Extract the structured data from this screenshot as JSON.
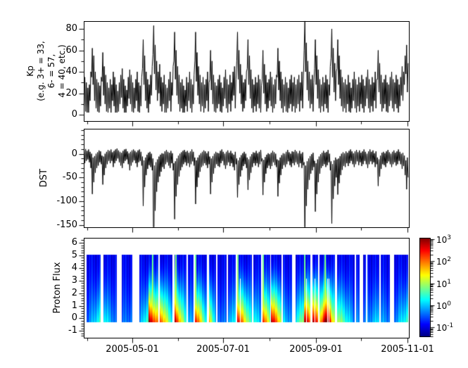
{
  "figure": {
    "background": "#ffffff",
    "line_color": "#000000",
    "axis_color": "#000000"
  },
  "xaxis": {
    "tick_labels": [
      "2005-05-01",
      "2005-07-01",
      "2005-09-01",
      "2005-11-01"
    ],
    "major_tick_days": [
      32,
      93,
      155,
      216
    ],
    "minor_tick_days": [
      2,
      63,
      124,
      185
    ],
    "span_days": 217
  },
  "colorbar": {
    "colormap": "jet",
    "scale": "log",
    "tick_exponents": [
      3,
      2,
      1,
      0,
      -1
    ],
    "base": "10",
    "log_range": [
      -1.41,
      3.06
    ]
  },
  "chart_data": [
    {
      "type": "line",
      "id": "kp",
      "ylabel_lines": [
        "Kp",
        "(e.g. 3+ = 33,",
        "6- = 57,",
        "4 = 40, etc.)"
      ],
      "ylim": [
        -6,
        87
      ],
      "yticks_major": [
        0,
        20,
        40,
        60,
        80
      ],
      "yticks_minor": [
        10,
        30,
        50,
        70
      ],
      "samples_per_day": 2,
      "series": [
        {
          "name": "kp_daily_low",
          "values": [
            8,
            3,
            2,
            2,
            13,
            35,
            28,
            13,
            6,
            3,
            2,
            8,
            31,
            18,
            10,
            3,
            2,
            6,
            2,
            13,
            8,
            2,
            2,
            3,
            10,
            16,
            6,
            2,
            2,
            8,
            15,
            10,
            3,
            2,
            6,
            13,
            3,
            2,
            8,
            43,
            28,
            13,
            6,
            2,
            10,
            18,
            56,
            38,
            23,
            13,
            20,
            8,
            3,
            10,
            2,
            2,
            6,
            13,
            3,
            18,
            50,
            33,
            18,
            10,
            3,
            6,
            2,
            2,
            8,
            3,
            13,
            6,
            2,
            10,
            50,
            31,
            18,
            10,
            3,
            8,
            2,
            6,
            13,
            3,
            33,
            23,
            10,
            3,
            2,
            6,
            10,
            3,
            2,
            8,
            15,
            6,
            2,
            10,
            3,
            13,
            18,
            6,
            50,
            33,
            20,
            10,
            3,
            6,
            13,
            43,
            28,
            15,
            6,
            2,
            8,
            3,
            10,
            6,
            2,
            33,
            20,
            10,
            3,
            6,
            13,
            8,
            2,
            6,
            10,
            35,
            23,
            13,
            6,
            2,
            8,
            3,
            2,
            6,
            10,
            3,
            8,
            2,
            6,
            10,
            3,
            13,
            6,
            60,
            40,
            23,
            13,
            6,
            10,
            3,
            43,
            28,
            15,
            6,
            2,
            8,
            3,
            10,
            6,
            2,
            18,
            53,
            35,
            21,
            13,
            43,
            28,
            15,
            8,
            3,
            6,
            2,
            10,
            3,
            2,
            6,
            13,
            6,
            2,
            8,
            3,
            10,
            6,
            2,
            8,
            15,
            6,
            2,
            8,
            3,
            13,
            6,
            33,
            21,
            10,
            3,
            6,
            10,
            3,
            2,
            8,
            13,
            6,
            3,
            10,
            6,
            2,
            8,
            18,
            13,
            28,
            38,
            21
          ]
        },
        {
          "name": "kp_daily_high",
          "values": [
            35,
            30,
            25,
            28,
            40,
            62,
            55,
            40,
            33,
            30,
            27,
            35,
            58,
            45,
            37,
            30,
            25,
            33,
            28,
            40,
            35,
            28,
            22,
            30,
            37,
            43,
            33,
            27,
            23,
            35,
            42,
            37,
            30,
            25,
            33,
            40,
            30,
            27,
            35,
            70,
            55,
            40,
            33,
            28,
            37,
            45,
            83,
            65,
            50,
            40,
            47,
            35,
            30,
            37,
            28,
            25,
            33,
            40,
            30,
            45,
            77,
            60,
            45,
            37,
            30,
            33,
            27,
            23,
            35,
            30,
            40,
            33,
            28,
            37,
            77,
            58,
            45,
            37,
            30,
            35,
            28,
            33,
            40,
            30,
            60,
            50,
            37,
            30,
            27,
            33,
            37,
            30,
            25,
            35,
            42,
            33,
            28,
            37,
            30,
            40,
            45,
            33,
            77,
            60,
            47,
            37,
            30,
            33,
            40,
            70,
            55,
            42,
            33,
            28,
            35,
            30,
            37,
            33,
            27,
            60,
            47,
            37,
            30,
            33,
            40,
            35,
            28,
            33,
            37,
            62,
            50,
            40,
            33,
            28,
            35,
            30,
            25,
            33,
            37,
            30,
            35,
            28,
            33,
            37,
            30,
            40,
            33,
            87,
            67,
            50,
            40,
            33,
            37,
            30,
            70,
            55,
            42,
            33,
            28,
            35,
            30,
            37,
            33,
            28,
            45,
            80,
            62,
            48,
            40,
            70,
            55,
            42,
            35,
            30,
            33,
            28,
            37,
            30,
            25,
            33,
            40,
            33,
            28,
            35,
            30,
            37,
            33,
            27,
            35,
            42,
            33,
            28,
            35,
            30,
            40,
            33,
            60,
            48,
            37,
            30,
            33,
            37,
            30,
            28,
            35,
            40,
            33,
            30,
            37,
            33,
            28,
            35,
            45,
            40,
            55,
            65,
            48
          ]
        }
      ]
    },
    {
      "type": "line",
      "id": "dst",
      "ylabel": "DST",
      "ylim": [
        -157,
        53
      ],
      "yticks_major": [
        0,
        -50,
        -100,
        -150
      ],
      "yticks_minor_step": 10,
      "samples_per_day": 2,
      "series": [
        {
          "name": "dst_daily_high",
          "values": [
            8,
            10,
            6,
            9,
            4,
            0,
            -8,
            -5,
            0,
            3,
            7,
            5,
            -4,
            -6,
            0,
            4,
            8,
            6,
            9,
            3,
            6,
            9,
            11,
            7,
            4,
            2,
            6,
            9,
            10,
            5,
            1,
            4,
            7,
            9,
            6,
            3,
            7,
            9,
            4,
            -6,
            -14,
            -8,
            -2,
            2,
            4,
            0,
            -10,
            -25,
            -18,
            -12,
            -6,
            -2,
            1,
            0,
            5,
            8,
            4,
            2,
            6,
            1,
            -20,
            -16,
            -10,
            -4,
            0,
            3,
            6,
            8,
            4,
            6,
            2,
            5,
            9,
            4,
            -8,
            -14,
            -8,
            -3,
            1,
            4,
            7,
            5,
            1,
            5,
            -6,
            -10,
            -5,
            0,
            4,
            2,
            1,
            6,
            9,
            4,
            0,
            4,
            7,
            2,
            6,
            1,
            -2,
            4,
            -10,
            -14,
            -8,
            -3,
            1,
            4,
            0,
            -8,
            -12,
            -6,
            -1,
            3,
            2,
            6,
            1,
            4,
            8,
            -10,
            -13,
            -7,
            -2,
            1,
            -1,
            2,
            6,
            3,
            0,
            -12,
            -14,
            -8,
            -3,
            1,
            0,
            4,
            8,
            3,
            0,
            5,
            4,
            8,
            5,
            1,
            6,
            0,
            3,
            -18,
            -25,
            -16,
            -10,
            -5,
            -1,
            2,
            -15,
            -20,
            -12,
            -6,
            -1,
            2,
            6,
            2,
            4,
            8,
            0,
            -16,
            -22,
            -14,
            -8,
            -12,
            -10,
            -5,
            0,
            3,
            1,
            5,
            2,
            6,
            9,
            5,
            1,
            5,
            8,
            3,
            7,
            2,
            5,
            9,
            4,
            0,
            5,
            9,
            4,
            7,
            1,
            5,
            -8,
            -12,
            -4,
            2,
            4,
            1,
            5,
            8,
            3,
            0,
            4,
            7,
            2,
            5,
            9,
            4,
            0,
            2,
            -4,
            -14,
            -8
          ]
        },
        {
          "name": "dst_daily_low",
          "values": [
            -20,
            -15,
            -12,
            -18,
            -30,
            -85,
            -60,
            -40,
            -30,
            -25,
            -18,
            -22,
            -65,
            -45,
            -30,
            -22,
            -15,
            -20,
            -15,
            -28,
            -20,
            -15,
            -10,
            -18,
            -25,
            -30,
            -20,
            -15,
            -12,
            -22,
            -35,
            -25,
            -18,
            -14,
            -20,
            -28,
            -18,
            -15,
            -25,
            -110,
            -70,
            -45,
            -32,
            -24,
            -28,
            -35,
            -247,
            -120,
            -80,
            -60,
            -48,
            -38,
            -28,
            -32,
            -22,
            -18,
            -25,
            -30,
            -20,
            -35,
            -138,
            -90,
            -65,
            -48,
            -35,
            -28,
            -22,
            -18,
            -25,
            -20,
            -28,
            -22,
            -16,
            -25,
            -106,
            -70,
            -50,
            -38,
            -28,
            -25,
            -20,
            -24,
            -30,
            -22,
            -85,
            -60,
            -42,
            -30,
            -22,
            -26,
            -28,
            -20,
            -15,
            -24,
            -32,
            -24,
            -18,
            -26,
            -20,
            -28,
            -35,
            -22,
            -92,
            -65,
            -48,
            -35,
            -26,
            -22,
            -30,
            -76,
            -55,
            -40,
            -28,
            -20,
            -25,
            -20,
            -28,
            -22,
            -16,
            -87,
            -60,
            -42,
            -30,
            -25,
            -32,
            -26,
            -18,
            -24,
            -28,
            -90,
            -62,
            -45,
            -32,
            -24,
            -28,
            -22,
            -16,
            -24,
            -28,
            -20,
            -24,
            -18,
            -22,
            -28,
            -20,
            -30,
            -24,
            -184,
            -110,
            -75,
            -55,
            -42,
            -35,
            -28,
            -122,
            -85,
            -60,
            -42,
            -30,
            -26,
            -22,
            -28,
            -24,
            -18,
            -35,
            -147,
            -95,
            -68,
            -50,
            -86,
            -62,
            -45,
            -34,
            -26,
            -28,
            -20,
            -26,
            -20,
            -15,
            -22,
            -28,
            -22,
            -16,
            -24,
            -18,
            -26,
            -22,
            -15,
            -22,
            -30,
            -22,
            -16,
            -22,
            -18,
            -28,
            -22,
            -68,
            -48,
            -32,
            -22,
            -24,
            -28,
            -20,
            -16,
            -22,
            -28,
            -22,
            -18,
            -25,
            -22,
            -15,
            -22,
            -32,
            -26,
            -45,
            -75,
            -50
          ]
        }
      ]
    },
    {
      "type": "heatmap",
      "id": "proton_flux",
      "ylabel": "Proton Flux",
      "ylim": [
        -1.54,
        6.39
      ],
      "yticks_major": [
        6,
        5,
        4,
        3,
        2,
        1,
        0,
        -1
      ],
      "yticks_minor_step": 0.2,
      "cell_y_range": [
        -0.26,
        5.06
      ],
      "scale": "log",
      "clim_log10": [
        -1,
        3
      ],
      "colormap": "jet",
      "top_log10_flux": -0.9,
      "data_gap_color": "#ffffff",
      "segment_fields": [
        "day_start",
        "day_end",
        "log10_flux_bottom_start",
        "log10_flux_bottom_end",
        "onset_stripe_day"
      ],
      "segments": [
        [
          1.2,
          10.6,
          -0.5,
          0.5,
          null
        ],
        [
          12.9,
          21.8,
          0.4,
          -0.5,
          null
        ],
        [
          25.1,
          32.1,
          -0.4,
          -0.3,
          null
        ],
        [
          36.8,
          43.0,
          -0.3,
          0.8,
          null
        ],
        [
          43.0,
          49.5,
          3.0,
          1.8,
          45.8
        ],
        [
          50.5,
          59.0,
          2.4,
          0.2,
          null
        ],
        [
          60.3,
          68.0,
          2.9,
          0.3,
          61.0
        ],
        [
          69.0,
          73.0,
          0.1,
          -0.3,
          null
        ],
        [
          74.0,
          82.0,
          2.7,
          0.1,
          74.5
        ],
        [
          83.0,
          88.0,
          1.9,
          -0.2,
          null
        ],
        [
          89.0,
          95.0,
          -0.3,
          -0.4,
          null
        ],
        [
          96.0,
          101.0,
          0.0,
          0.2,
          null
        ],
        [
          102.0,
          112.0,
          2.9,
          0.2,
          102.5
        ],
        [
          113.0,
          118.0,
          0.6,
          -0.2,
          null
        ],
        [
          119.0,
          124.0,
          2.6,
          0.9,
          119.5
        ],
        [
          124.5,
          131.5,
          3.1,
          1.2,
          null
        ],
        [
          132.5,
          138.7,
          0.2,
          -0.3,
          null
        ],
        [
          141.0,
          146.5,
          0.3,
          1.0,
          null
        ],
        [
          146.5,
          151.0,
          3.2,
          2.0,
          147.0
        ],
        [
          152.5,
          156.0,
          3.0,
          2.2,
          null
        ],
        [
          157.0,
          160.5,
          1.6,
          2.8,
          null
        ],
        [
          160.5,
          164.5,
          3.2,
          2.8,
          161.0
        ],
        [
          164.5,
          167.5,
          1.8,
          1.0,
          null
        ],
        [
          169.0,
          180.5,
          1.2,
          -0.3,
          null
        ],
        [
          181.5,
          184.0,
          -0.2,
          -0.3,
          null
        ],
        [
          186.0,
          188.0,
          -0.3,
          -0.3,
          null
        ],
        [
          189.0,
          197.0,
          -0.3,
          0.2,
          null
        ],
        [
          198.0,
          204.0,
          -0.1,
          -0.3,
          null
        ],
        [
          207.0,
          216.5,
          -0.3,
          0.6,
          null
        ]
      ],
      "holes_days": [
        104,
        148.5,
        154,
        162.5,
        163.5
      ]
    }
  ]
}
